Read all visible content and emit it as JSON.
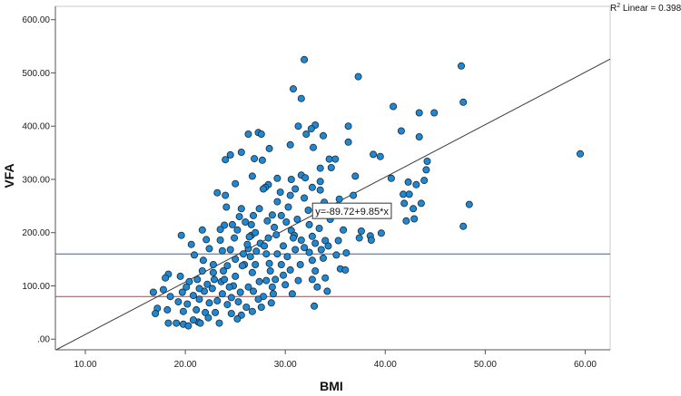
{
  "chart_data": {
    "type": "scatter",
    "xlabel": "BMI",
    "ylabel": "VFA",
    "xlim": [
      7.0,
      62.5
    ],
    "ylim": [
      -20,
      625
    ],
    "x_ticks": [
      10,
      20,
      30,
      40,
      50,
      60
    ],
    "x_tick_labels": [
      "10.00",
      "20.00",
      "30.00",
      "40.00",
      "50.00",
      "60.00"
    ],
    "y_ticks": [
      0,
      100,
      200,
      300,
      400,
      500,
      600
    ],
    "y_tick_labels": [
      ".00",
      "100.00",
      "200.00",
      "300.00",
      "400.00",
      "500.00",
      "600.00"
    ],
    "grid": false,
    "r2_label": "R",
    "r2_sup": "2",
    "r2_suffix": " Linear = 0.398",
    "fit_line": {
      "intercept": -89.72,
      "slope": 9.85,
      "equation_label": "y=-89.72+9.85*x",
      "label_at": [
        33.0,
        235.0
      ],
      "color": "#3a3a3a"
    },
    "reference_lines": [
      {
        "y": 160,
        "color": "#4a5f7a"
      },
      {
        "y": 80,
        "color": "#c23a3a"
      }
    ],
    "point_color": "#1f88d0",
    "point_edge": "#1a2a3a",
    "points": [
      [
        31.9,
        525
      ],
      [
        37.3,
        493
      ],
      [
        47.6,
        513
      ],
      [
        30.8,
        470
      ],
      [
        31.6,
        452
      ],
      [
        47.8,
        445
      ],
      [
        40.8,
        437
      ],
      [
        44.9,
        425
      ],
      [
        43.4,
        425
      ],
      [
        36.3,
        400
      ],
      [
        31.3,
        400
      ],
      [
        33.0,
        402
      ],
      [
        32.6,
        395
      ],
      [
        27.3,
        388
      ],
      [
        27.6,
        385
      ],
      [
        41.6,
        391
      ],
      [
        32.1,
        385
      ],
      [
        43.4,
        380
      ],
      [
        26.3,
        385
      ],
      [
        33.8,
        382
      ],
      [
        36.3,
        370
      ],
      [
        30.5,
        365
      ],
      [
        28.4,
        358
      ],
      [
        32.8,
        360
      ],
      [
        59.5,
        348
      ],
      [
        38.8,
        347
      ],
      [
        25.6,
        351
      ],
      [
        24.5,
        346
      ],
      [
        24.0,
        337
      ],
      [
        26.9,
        339
      ],
      [
        27.7,
        336
      ],
      [
        39.5,
        343
      ],
      [
        34.4,
        338
      ],
      [
        35.0,
        338
      ],
      [
        44.2,
        334
      ],
      [
        44.1,
        318
      ],
      [
        33.5,
        321
      ],
      [
        34.6,
        322
      ],
      [
        31.6,
        308
      ],
      [
        37.0,
        306
      ],
      [
        26.7,
        306
      ],
      [
        29.2,
        302
      ],
      [
        30.6,
        300
      ],
      [
        32.0,
        303
      ],
      [
        25.0,
        292
      ],
      [
        28.3,
        290
      ],
      [
        28.0,
        285
      ],
      [
        27.8,
        282
      ],
      [
        33.5,
        296
      ],
      [
        40.6,
        302
      ],
      [
        42.3,
        295
      ],
      [
        43.1,
        290
      ],
      [
        43.9,
        298
      ],
      [
        31.0,
        282
      ],
      [
        32.7,
        285
      ],
      [
        33.5,
        280
      ],
      [
        23.2,
        275
      ],
      [
        24.0,
        270
      ],
      [
        29.5,
        276
      ],
      [
        30.5,
        270
      ],
      [
        35.4,
        263
      ],
      [
        36.8,
        270
      ],
      [
        41.8,
        272
      ],
      [
        42.4,
        272
      ],
      [
        31.9,
        265
      ],
      [
        33.9,
        257
      ],
      [
        48.4,
        253
      ],
      [
        41.9,
        255
      ],
      [
        43.6,
        255
      ],
      [
        42.8,
        245
      ],
      [
        37.2,
        248
      ],
      [
        38.0,
        240
      ],
      [
        34.9,
        244
      ],
      [
        32.3,
        242
      ],
      [
        30.3,
        248
      ],
      [
        29.2,
        258
      ],
      [
        27.4,
        245
      ],
      [
        25.6,
        245
      ],
      [
        25.4,
        230
      ],
      [
        26.8,
        232
      ],
      [
        28.7,
        233
      ],
      [
        26.0,
        220
      ],
      [
        26.6,
        215
      ],
      [
        24.7,
        215
      ],
      [
        23.9,
        214
      ],
      [
        23.5,
        206
      ],
      [
        21.7,
        205
      ],
      [
        19.6,
        195
      ],
      [
        28.9,
        210
      ],
      [
        30.6,
        204
      ],
      [
        35.8,
        205
      ],
      [
        37.6,
        203
      ],
      [
        38.5,
        194
      ],
      [
        39.6,
        199
      ],
      [
        47.8,
        212
      ],
      [
        42.9,
        226
      ],
      [
        42.1,
        222
      ],
      [
        29.1,
        196
      ],
      [
        28.3,
        190
      ],
      [
        27.5,
        180
      ],
      [
        30.9,
        195
      ],
      [
        31.6,
        186
      ],
      [
        32.7,
        193
      ],
      [
        33.0,
        180
      ],
      [
        34.3,
        175
      ],
      [
        35.3,
        185
      ],
      [
        34.0,
        185
      ],
      [
        37.4,
        190
      ],
      [
        38.6,
        186
      ],
      [
        24.9,
        190
      ],
      [
        26.6,
        195
      ],
      [
        23.5,
        186
      ],
      [
        22.1,
        187
      ],
      [
        20.6,
        178
      ],
      [
        22.4,
        170
      ],
      [
        23.7,
        166
      ],
      [
        24.5,
        168
      ],
      [
        26.3,
        170
      ],
      [
        27.1,
        165
      ],
      [
        28.1,
        160
      ],
      [
        29.8,
        175
      ],
      [
        31.0,
        168
      ],
      [
        32.4,
        163
      ],
      [
        33.6,
        168
      ],
      [
        35.1,
        158
      ],
      [
        36.1,
        162
      ],
      [
        33.8,
        152
      ],
      [
        32.7,
        148
      ],
      [
        31.5,
        140
      ],
      [
        29.6,
        140
      ],
      [
        27.0,
        140
      ],
      [
        25.9,
        140
      ],
      [
        25.0,
        150
      ],
      [
        24.2,
        138
      ],
      [
        22.8,
        140
      ],
      [
        21.8,
        148
      ],
      [
        20.9,
        158
      ],
      [
        21.7,
        128
      ],
      [
        22.8,
        125
      ],
      [
        23.8,
        128
      ],
      [
        25.0,
        118
      ],
      [
        26.7,
        125
      ],
      [
        28.5,
        128
      ],
      [
        29.8,
        120
      ],
      [
        30.5,
        130
      ],
      [
        33.0,
        128
      ],
      [
        34.0,
        115
      ],
      [
        35.5,
        132
      ],
      [
        36.0,
        130
      ],
      [
        18.3,
        122
      ],
      [
        18.0,
        115
      ],
      [
        19.5,
        118
      ],
      [
        20.4,
        108
      ],
      [
        21.2,
        112
      ],
      [
        22.2,
        103
      ],
      [
        23.6,
        108
      ],
      [
        24.8,
        100
      ],
      [
        26.3,
        98
      ],
      [
        27.4,
        108
      ],
      [
        28.7,
        98
      ],
      [
        30.0,
        102
      ],
      [
        31.3,
        110
      ],
      [
        32.7,
        112
      ],
      [
        33.2,
        98
      ],
      [
        34.2,
        90
      ],
      [
        16.8,
        88
      ],
      [
        17.8,
        93
      ],
      [
        18.5,
        80
      ],
      [
        19.7,
        88
      ],
      [
        20.8,
        82
      ],
      [
        21.9,
        90
      ],
      [
        22.7,
        95
      ],
      [
        23.7,
        85
      ],
      [
        24.6,
        78
      ],
      [
        25.5,
        88
      ],
      [
        26.8,
        90
      ],
      [
        27.8,
        80
      ],
      [
        28.8,
        85
      ],
      [
        19.3,
        70
      ],
      [
        20.2,
        66
      ],
      [
        21.4,
        75
      ],
      [
        22.4,
        68
      ],
      [
        23.2,
        72
      ],
      [
        24.2,
        65
      ],
      [
        25.3,
        70
      ],
      [
        26.1,
        60
      ],
      [
        27.3,
        75
      ],
      [
        28.6,
        68
      ],
      [
        17.2,
        58
      ],
      [
        18.2,
        55
      ],
      [
        19.8,
        52
      ],
      [
        21.1,
        55
      ],
      [
        22.0,
        50
      ],
      [
        23.0,
        50
      ],
      [
        24.6,
        48
      ],
      [
        25.6,
        45
      ],
      [
        26.7,
        52
      ],
      [
        32.9,
        62
      ],
      [
        17.0,
        48
      ],
      [
        18.3,
        30
      ],
      [
        19.1,
        30
      ],
      [
        19.8,
        28
      ],
      [
        20.3,
        25
      ],
      [
        21.3,
        32
      ],
      [
        22.3,
        40
      ],
      [
        23.4,
        30
      ],
      [
        25.2,
        38
      ],
      [
        21.5,
        30
      ],
      [
        20.8,
        36
      ],
      [
        23.9,
        112
      ],
      [
        25.7,
        138
      ],
      [
        26.5,
        155
      ],
      [
        27.9,
        175
      ],
      [
        28.4,
        142
      ],
      [
        29.2,
        160
      ],
      [
        30.2,
        155
      ],
      [
        30.8,
        190
      ],
      [
        31.9,
        172
      ],
      [
        30.1,
        220
      ],
      [
        25.2,
        205
      ],
      [
        24.1,
        248
      ],
      [
        26.2,
        178
      ],
      [
        27.0,
        200
      ],
      [
        28.2,
        222
      ],
      [
        29.6,
        232
      ],
      [
        31.2,
        225
      ],
      [
        32.4,
        215
      ],
      [
        33.4,
        208
      ],
      [
        34.5,
        225
      ],
      [
        36.4,
        235
      ],
      [
        26.4,
        192
      ],
      [
        25.8,
        160
      ],
      [
        22.9,
        112
      ],
      [
        24.4,
        98
      ],
      [
        21.4,
        95
      ],
      [
        20.1,
        98
      ],
      [
        28.1,
        110
      ],
      [
        29.0,
        112
      ],
      [
        30.7,
        85
      ],
      [
        27.6,
        60
      ]
    ]
  }
}
